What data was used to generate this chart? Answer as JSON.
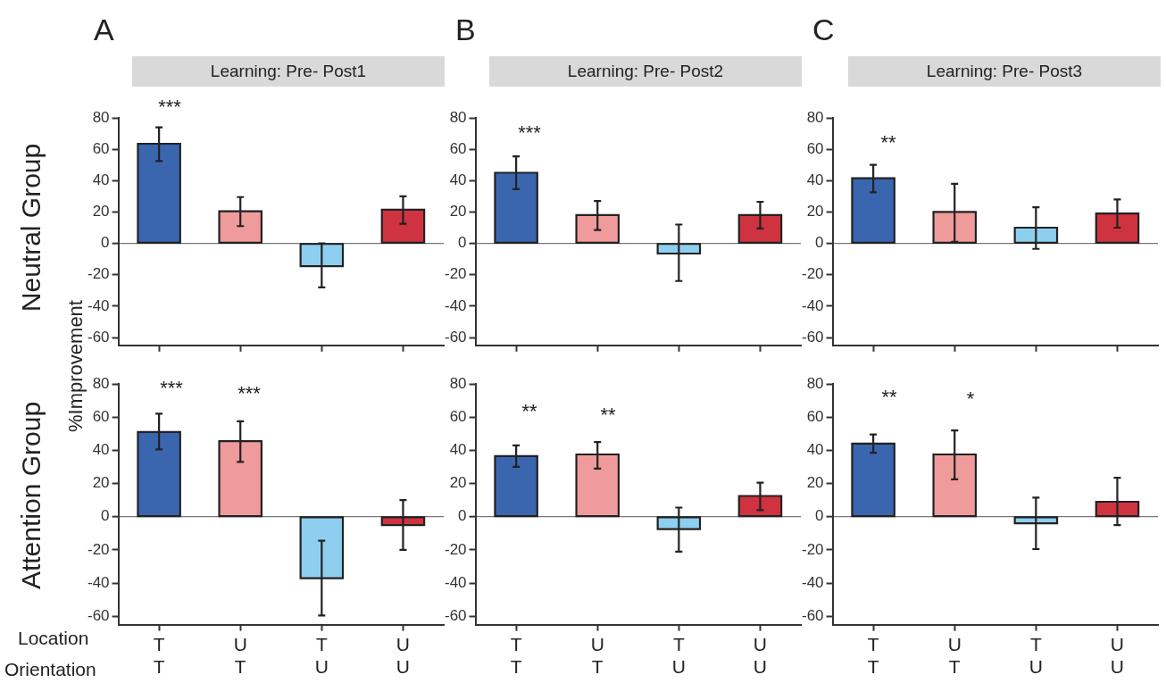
{
  "chart_data": [
    {
      "type": "bar",
      "title": "Learning: Pre- Post1",
      "ylabel": "%Improvement",
      "categories": [
        null,
        null,
        null,
        null
      ],
      "values": [
        63.5,
        20.5,
        -14.5,
        21.5
      ],
      "colors": [
        "#3a66b0",
        "#f09b9b",
        "#8ecff0",
        "#cf3340"
      ],
      "errors": [
        [
          52.5,
          74
        ],
        [
          11,
          29.5
        ],
        [
          -28,
          0
        ],
        [
          12.5,
          30
        ]
      ],
      "ylim": [
        -65,
        80
      ],
      "yticks": [
        -60,
        -40,
        -20,
        0,
        20,
        40,
        60,
        80
      ],
      "tick_labels": "y",
      "annotations": [
        "A",
        "Neutral Group",
        "***"
      ]
    },
    {
      "type": "bar",
      "title": "Learning: Pre- Post2",
      "categories": [
        null,
        null,
        null,
        null
      ],
      "values": [
        45,
        18,
        -6.5,
        18
      ],
      "colors": [
        "#3a66b0",
        "#f09b9b",
        "#8ecff0",
        "#cf3340"
      ],
      "errors": [
        [
          34.5,
          55.5
        ],
        [
          8.5,
          27
        ],
        [
          -24,
          12
        ],
        [
          9.5,
          26.5
        ]
      ],
      "ylim": [
        -65,
        80
      ],
      "yticks": [
        -60,
        -40,
        -20,
        0,
        20,
        40,
        60,
        80
      ],
      "tick_labels": "y",
      "annotations": [
        "B",
        "***"
      ]
    },
    {
      "type": "bar",
      "title": "Learning: Pre- Post3",
      "categories": [
        null,
        null,
        null,
        null
      ],
      "values": [
        41.5,
        20,
        10,
        19
      ],
      "colors": [
        "#3a66b0",
        "#f09b9b",
        "#8ecff0",
        "#cf3340"
      ],
      "errors": [
        [
          32.5,
          50
        ],
        [
          1,
          38
        ],
        [
          -3.5,
          23
        ],
        [
          10,
          28
        ]
      ],
      "ylim": [
        -65,
        80
      ],
      "yticks": [
        -60,
        -40,
        -20,
        0,
        20,
        40,
        60,
        80
      ],
      "tick_labels": "y",
      "annotations": [
        "C",
        "**"
      ]
    },
    {
      "type": "bar",
      "categories": [
        "T\nT",
        "U\nT",
        "T\nU",
        "U\nU"
      ],
      "values": [
        51,
        45.5,
        -37,
        -5
      ],
      "colors": [
        "#3a66b0",
        "#f09b9b",
        "#8ecff0",
        "#cf3340"
      ],
      "errors": [
        [
          40.5,
          62
        ],
        [
          33,
          57.5
        ],
        [
          -59.5,
          -14.5
        ],
        [
          -20,
          10
        ]
      ],
      "ylim": [
        -65,
        80
      ],
      "yticks": [
        -60,
        -40,
        -20,
        0,
        20,
        40,
        60,
        80
      ],
      "annotations": [
        "Attention Group",
        "Location",
        "Orientation",
        "***",
        "***"
      ]
    },
    {
      "type": "bar",
      "categories": [
        "T\nT",
        "U\nT",
        "T\nU",
        "U\nU"
      ],
      "values": [
        36.5,
        37.5,
        -7.5,
        12.5
      ],
      "colors": [
        "#3a66b0",
        "#f09b9b",
        "#8ecff0",
        "#cf3340"
      ],
      "errors": [
        [
          30,
          43
        ],
        [
          29,
          45
        ],
        [
          -21,
          5.5
        ],
        [
          4,
          20.5
        ]
      ],
      "ylim": [
        -65,
        80
      ],
      "yticks": [
        -60,
        -40,
        -20,
        0,
        20,
        40,
        60,
        80
      ],
      "annotations": [
        "**",
        "**"
      ]
    },
    {
      "type": "bar",
      "categories": [
        "T\nT",
        "U\nT",
        "T\nU",
        "U\nU"
      ],
      "values": [
        44,
        37.5,
        -4,
        9
      ],
      "colors": [
        "#3a66b0",
        "#f09b9b",
        "#8ecff0",
        "#cf3340"
      ],
      "errors": [
        [
          38.5,
          49.5
        ],
        [
          22.5,
          52
        ],
        [
          -19.5,
          11.5
        ],
        [
          -5,
          23.5
        ]
      ],
      "ylim": [
        -65,
        80
      ],
      "yticks": [
        -60,
        -40,
        -20,
        0,
        20,
        40,
        60,
        80
      ],
      "annotations": [
        "**",
        "*"
      ]
    }
  ]
}
